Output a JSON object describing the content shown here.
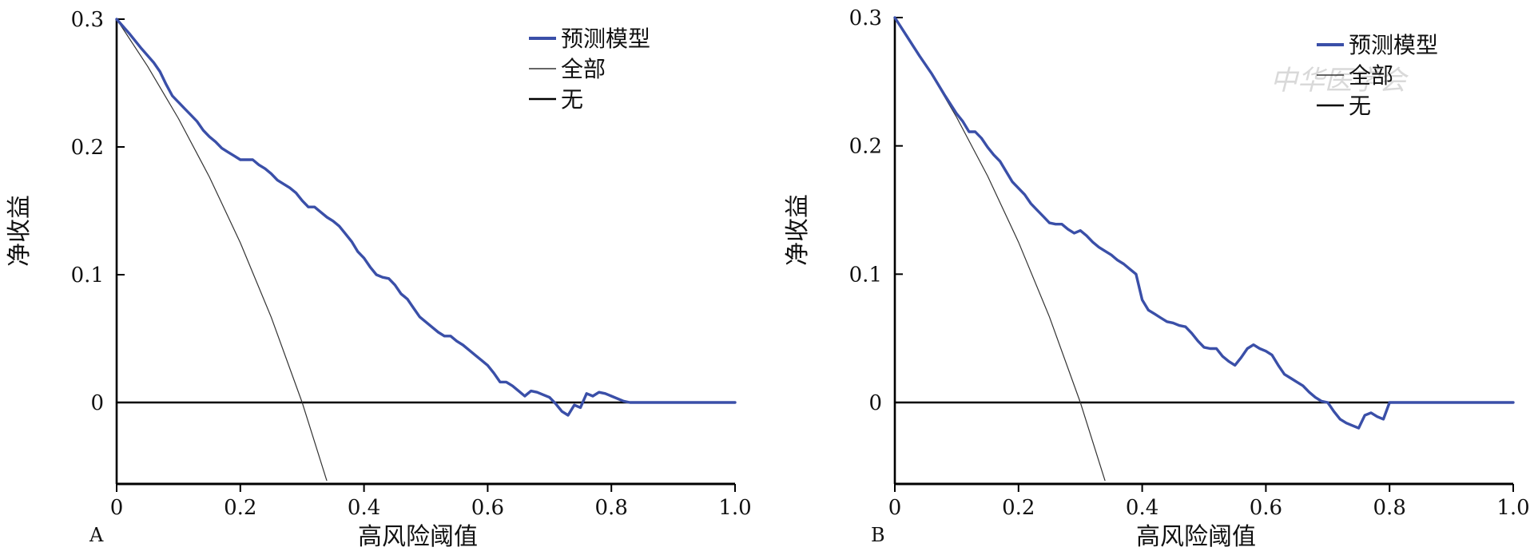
{
  "chart_data": [
    {
      "type": "line",
      "panel_label": "A",
      "xlabel": "高风险阈值",
      "ylabel": "净收益",
      "xlim": [
        0,
        1.0
      ],
      "ylim": [
        -0.065,
        0.3
      ],
      "x_ticks": [
        "0",
        "0.2",
        "0.4",
        "0.6",
        "0.8",
        "1.0"
      ],
      "x_tick_values": [
        0,
        0.2,
        0.4,
        0.6,
        0.8,
        1.0
      ],
      "y_ticks": [
        "0",
        "0.1",
        "0.2",
        "0.3"
      ],
      "y_tick_values": [
        0,
        0.1,
        0.2,
        0.3
      ],
      "legend_position": "top-right",
      "legend": [
        "预测模型",
        "全部",
        "无"
      ],
      "series": [
        {
          "name": "预测模型",
          "color": "#3a4fa8",
          "points": [
            [
              0,
              0.3
            ],
            [
              0.02,
              0.289
            ],
            [
              0.04,
              0.277
            ],
            [
              0.06,
              0.266
            ],
            [
              0.07,
              0.259
            ],
            [
              0.08,
              0.249
            ],
            [
              0.09,
              0.24
            ],
            [
              0.1,
              0.235
            ],
            [
              0.11,
              0.23
            ],
            [
              0.12,
              0.225
            ],
            [
              0.13,
              0.22
            ],
            [
              0.14,
              0.213
            ],
            [
              0.15,
              0.208
            ],
            [
              0.16,
              0.204
            ],
            [
              0.17,
              0.199
            ],
            [
              0.18,
              0.196
            ],
            [
              0.19,
              0.193
            ],
            [
              0.2,
              0.19
            ],
            [
              0.21,
              0.19
            ],
            [
              0.22,
              0.19
            ],
            [
              0.23,
              0.186
            ],
            [
              0.24,
              0.183
            ],
            [
              0.25,
              0.179
            ],
            [
              0.26,
              0.174
            ],
            [
              0.27,
              0.171
            ],
            [
              0.28,
              0.168
            ],
            [
              0.29,
              0.164
            ],
            [
              0.3,
              0.158
            ],
            [
              0.31,
              0.153
            ],
            [
              0.32,
              0.153
            ],
            [
              0.33,
              0.149
            ],
            [
              0.34,
              0.145
            ],
            [
              0.35,
              0.142
            ],
            [
              0.36,
              0.138
            ],
            [
              0.37,
              0.132
            ],
            [
              0.38,
              0.126
            ],
            [
              0.39,
              0.118
            ],
            [
              0.4,
              0.113
            ],
            [
              0.41,
              0.106
            ],
            [
              0.42,
              0.1
            ],
            [
              0.43,
              0.098
            ],
            [
              0.44,
              0.097
            ],
            [
              0.45,
              0.092
            ],
            [
              0.46,
              0.085
            ],
            [
              0.47,
              0.081
            ],
            [
              0.48,
              0.074
            ],
            [
              0.49,
              0.067
            ],
            [
              0.5,
              0.063
            ],
            [
              0.51,
              0.059
            ],
            [
              0.52,
              0.055
            ],
            [
              0.53,
              0.052
            ],
            [
              0.54,
              0.052
            ],
            [
              0.55,
              0.048
            ],
            [
              0.56,
              0.045
            ],
            [
              0.57,
              0.041
            ],
            [
              0.58,
              0.037
            ],
            [
              0.59,
              0.033
            ],
            [
              0.6,
              0.029
            ],
            [
              0.61,
              0.023
            ],
            [
              0.62,
              0.016
            ],
            [
              0.63,
              0.016
            ],
            [
              0.64,
              0.013
            ],
            [
              0.65,
              0.009
            ],
            [
              0.66,
              0.005
            ],
            [
              0.67,
              0.009
            ],
            [
              0.68,
              0.008
            ],
            [
              0.69,
              0.006
            ],
            [
              0.7,
              0.004
            ],
            [
              0.71,
              -0.001
            ],
            [
              0.72,
              -0.007
            ],
            [
              0.73,
              -0.01
            ],
            [
              0.74,
              -0.002
            ],
            [
              0.75,
              -0.004
            ],
            [
              0.76,
              0.007
            ],
            [
              0.77,
              0.005
            ],
            [
              0.78,
              0.008
            ],
            [
              0.79,
              0.007
            ],
            [
              0.8,
              0.005
            ],
            [
              0.81,
              0.003
            ],
            [
              0.82,
              0.001
            ],
            [
              0.83,
              0
            ],
            [
              1.0,
              0
            ]
          ]
        },
        {
          "name": "全部",
          "color": "#333333",
          "points": [
            [
              0,
              0.3
            ],
            [
              0.05,
              0.2632
            ],
            [
              0.1,
              0.2222
            ],
            [
              0.15,
              0.1765
            ],
            [
              0.2,
              0.125
            ],
            [
              0.25,
              0.0667
            ],
            [
              0.3,
              0
            ],
            [
              0.35,
              -0.0769
            ]
          ]
        },
        {
          "name": "无",
          "color": "#000000",
          "points": [
            [
              0,
              0
            ],
            [
              1.0,
              0
            ]
          ]
        }
      ]
    },
    {
      "type": "line",
      "panel_label": "B",
      "xlabel": "高风险阈值",
      "ylabel": "净收益",
      "xlim": [
        0,
        1.0
      ],
      "ylim": [
        -0.065,
        0.3
      ],
      "x_ticks": [
        "0",
        "0.2",
        "0.4",
        "0.6",
        "0.8",
        "1.0"
      ],
      "x_tick_values": [
        0,
        0.2,
        0.4,
        0.6,
        0.8,
        1.0
      ],
      "y_ticks": [
        "0",
        "0.1",
        "0.2",
        "0.3"
      ],
      "y_tick_values": [
        0,
        0.1,
        0.2,
        0.3
      ],
      "legend_position": "top-right",
      "legend": [
        "预测模型",
        "全部",
        "无"
      ],
      "series": [
        {
          "name": "预测模型",
          "color": "#3a4fa8",
          "points": [
            [
              0,
              0.3
            ],
            [
              0.02,
              0.285
            ],
            [
              0.04,
              0.27
            ],
            [
              0.06,
              0.256
            ],
            [
              0.08,
              0.24
            ],
            [
              0.1,
              0.225
            ],
            [
              0.11,
              0.219
            ],
            [
              0.12,
              0.211
            ],
            [
              0.13,
              0.211
            ],
            [
              0.14,
              0.206
            ],
            [
              0.15,
              0.199
            ],
            [
              0.16,
              0.193
            ],
            [
              0.17,
              0.188
            ],
            [
              0.18,
              0.18
            ],
            [
              0.19,
              0.172
            ],
            [
              0.2,
              0.167
            ],
            [
              0.21,
              0.162
            ],
            [
              0.22,
              0.155
            ],
            [
              0.23,
              0.15
            ],
            [
              0.24,
              0.145
            ],
            [
              0.25,
              0.14
            ],
            [
              0.26,
              0.139
            ],
            [
              0.27,
              0.139
            ],
            [
              0.28,
              0.135
            ],
            [
              0.29,
              0.132
            ],
            [
              0.3,
              0.134
            ],
            [
              0.31,
              0.13
            ],
            [
              0.32,
              0.125
            ],
            [
              0.33,
              0.121
            ],
            [
              0.34,
              0.118
            ],
            [
              0.35,
              0.115
            ],
            [
              0.36,
              0.111
            ],
            [
              0.37,
              0.108
            ],
            [
              0.38,
              0.104
            ],
            [
              0.39,
              0.1
            ],
            [
              0.4,
              0.08
            ],
            [
              0.41,
              0.072
            ],
            [
              0.42,
              0.069
            ],
            [
              0.43,
              0.066
            ],
            [
              0.44,
              0.063
            ],
            [
              0.45,
              0.062
            ],
            [
              0.46,
              0.06
            ],
            [
              0.47,
              0.059
            ],
            [
              0.48,
              0.054
            ],
            [
              0.49,
              0.048
            ],
            [
              0.5,
              0.043
            ],
            [
              0.51,
              0.042
            ],
            [
              0.52,
              0.042
            ],
            [
              0.53,
              0.036
            ],
            [
              0.54,
              0.032
            ],
            [
              0.55,
              0.029
            ],
            [
              0.56,
              0.035
            ],
            [
              0.57,
              0.042
            ],
            [
              0.58,
              0.045
            ],
            [
              0.59,
              0.042
            ],
            [
              0.6,
              0.04
            ],
            [
              0.61,
              0.037
            ],
            [
              0.62,
              0.029
            ],
            [
              0.63,
              0.022
            ],
            [
              0.64,
              0.019
            ],
            [
              0.65,
              0.016
            ],
            [
              0.66,
              0.013
            ],
            [
              0.67,
              0.008
            ],
            [
              0.68,
              0.004
            ],
            [
              0.69,
              0.001
            ],
            [
              0.7,
              0
            ],
            [
              0.71,
              -0.007
            ],
            [
              0.72,
              -0.013
            ],
            [
              0.73,
              -0.016
            ],
            [
              0.74,
              -0.018
            ],
            [
              0.75,
              -0.02
            ],
            [
              0.76,
              -0.01
            ],
            [
              0.77,
              -0.008
            ],
            [
              0.78,
              -0.011
            ],
            [
              0.79,
              -0.013
            ],
            [
              0.8,
              0
            ],
            [
              1.0,
              0
            ]
          ]
        },
        {
          "name": "全部",
          "color": "#333333",
          "points": [
            [
              0,
              0.3
            ],
            [
              0.05,
              0.2632
            ],
            [
              0.1,
              0.2222
            ],
            [
              0.15,
              0.1765
            ],
            [
              0.2,
              0.125
            ],
            [
              0.25,
              0.0667
            ],
            [
              0.3,
              0
            ],
            [
              0.345,
              -0.0687
            ]
          ]
        },
        {
          "name": "无",
          "color": "#000000",
          "points": [
            [
              0,
              0
            ],
            [
              1.0,
              0
            ]
          ]
        }
      ]
    }
  ],
  "watermark": "中华医学会"
}
